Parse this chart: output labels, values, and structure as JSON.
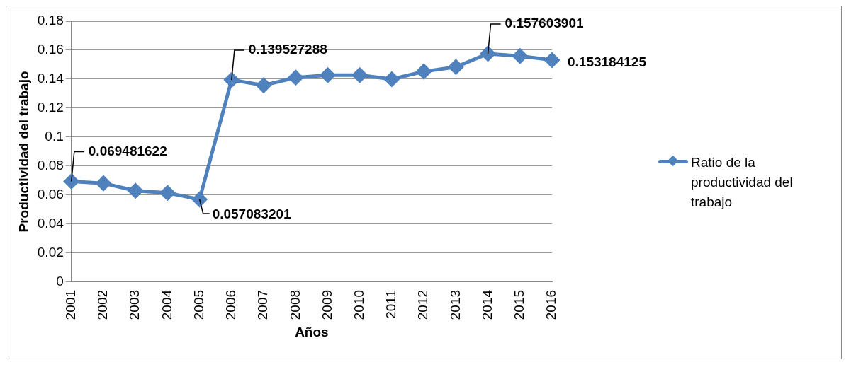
{
  "chart_data": {
    "type": "line",
    "xlabel": "Años",
    "ylabel": "Productividad del trabajo",
    "categories": [
      "2001",
      "2002",
      "2003",
      "2004",
      "2005",
      "2006",
      "2007",
      "2008",
      "2009",
      "2010",
      "2011",
      "2012",
      "2013",
      "2014",
      "2015",
      "2016"
    ],
    "series": [
      {
        "name": "Ratio de la productividad del trabajo",
        "color": "#4f81bd",
        "values": [
          0.069481622,
          0.0682,
          0.063,
          0.0616,
          0.057083201,
          0.139527288,
          0.1358,
          0.1411,
          0.1428,
          0.1428,
          0.14,
          0.1453,
          0.1484,
          0.157603901,
          0.156,
          0.153184125
        ],
        "value_labels": [
          "0.069481622",
          null,
          null,
          null,
          "0.057083201",
          "0.139527288",
          null,
          null,
          null,
          null,
          null,
          null,
          null,
          "0.157603901",
          null,
          "0.153184125"
        ]
      }
    ],
    "ylim": [
      0,
      0.18
    ],
    "yticks": [
      0,
      0.02,
      0.04,
      0.06,
      0.08,
      0.1,
      0.12,
      0.14,
      0.16,
      0.18
    ],
    "grid": "y",
    "legend": "right",
    "marker": "diamond",
    "line_style": "solid"
  }
}
